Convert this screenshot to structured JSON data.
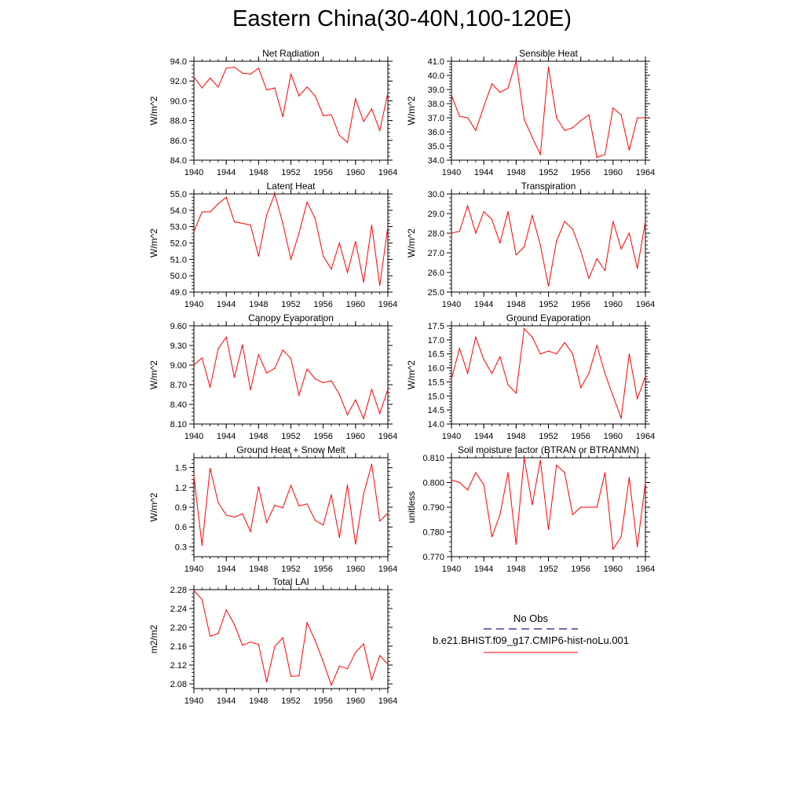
{
  "figure": {
    "title": "Eastern China(30-40N,100-120E)"
  },
  "legend": {
    "obs_label": "No Obs",
    "obs_color": "#1a1a80",
    "model_label": "b.e21.BHIST.f09_g17.CMIP6-hist-noLu.001",
    "model_color": "#ff0000"
  },
  "chart_data": [
    {
      "type": "line",
      "title": "Net Radiation",
      "xlabel": "",
      "ylabel": "W/m^2",
      "xlim": [
        1940,
        1964
      ],
      "ylim": [
        84,
        94
      ],
      "xticks": [
        1940,
        1944,
        1948,
        1952,
        1956,
        1960,
        1964
      ],
      "yticks": [
        "84.0",
        "86.0",
        "88.0",
        "90.0",
        "92.0",
        "94.0"
      ],
      "x": [
        1940,
        1941,
        1942,
        1943,
        1944,
        1945,
        1946,
        1947,
        1948,
        1949,
        1950,
        1951,
        1952,
        1953,
        1954,
        1955,
        1956,
        1957,
        1958,
        1959,
        1960,
        1961,
        1962,
        1963,
        1964
      ],
      "series": [
        {
          "color": "#ff0000",
          "values": [
            92.4,
            91.3,
            92.3,
            91.4,
            93.3,
            93.4,
            92.8,
            92.7,
            93.3,
            91.1,
            91.3,
            88.4,
            92.7,
            90.5,
            91.4,
            90.5,
            88.5,
            88.6,
            86.5,
            85.8,
            90.2,
            87.9,
            89.2,
            87.0,
            90.8
          ]
        }
      ]
    },
    {
      "type": "line",
      "title": "Sensible Heat",
      "xlabel": "",
      "ylabel": "W/m^2",
      "xlim": [
        1940,
        1964
      ],
      "ylim": [
        34,
        41
      ],
      "xticks": [
        1940,
        1944,
        1948,
        1952,
        1956,
        1960,
        1964
      ],
      "yticks": [
        "34.0",
        "35.0",
        "36.0",
        "37.0",
        "38.0",
        "39.0",
        "40.0",
        "41.0"
      ],
      "x": [
        1940,
        1941,
        1942,
        1943,
        1944,
        1945,
        1946,
        1947,
        1948,
        1949,
        1950,
        1951,
        1952,
        1953,
        1954,
        1955,
        1956,
        1957,
        1958,
        1959,
        1960,
        1961,
        1962,
        1963,
        1964
      ],
      "series": [
        {
          "color": "#ff0000",
          "values": [
            38.6,
            37.1,
            37.0,
            36.1,
            37.8,
            39.4,
            38.8,
            39.1,
            41.0,
            36.9,
            35.6,
            34.4,
            40.6,
            37.0,
            36.1,
            36.3,
            36.8,
            37.2,
            34.2,
            34.4,
            37.7,
            37.2,
            34.7,
            37.0,
            37.0
          ]
        }
      ]
    },
    {
      "type": "line",
      "title": "Latent Heat",
      "xlabel": "",
      "ylabel": "W/m^2",
      "xlim": [
        1940,
        1964
      ],
      "ylim": [
        49,
        55
      ],
      "xticks": [
        1940,
        1944,
        1948,
        1952,
        1956,
        1960,
        1964
      ],
      "yticks": [
        "49.0",
        "50.0",
        "51.0",
        "52.0",
        "53.0",
        "54.0",
        "55.0"
      ],
      "x": [
        1940,
        1941,
        1942,
        1943,
        1944,
        1945,
        1946,
        1947,
        1948,
        1949,
        1950,
        1951,
        1952,
        1953,
        1954,
        1955,
        1956,
        1957,
        1958,
        1959,
        1960,
        1961,
        1962,
        1963,
        1964
      ],
      "series": [
        {
          "color": "#ff0000",
          "values": [
            52.7,
            53.9,
            53.9,
            54.4,
            54.8,
            53.3,
            53.2,
            53.1,
            51.2,
            53.7,
            55.0,
            53.2,
            51.0,
            52.6,
            54.5,
            53.5,
            51.2,
            50.4,
            52.0,
            50.2,
            52.1,
            49.6,
            53.1,
            49.4,
            53.0
          ]
        }
      ]
    },
    {
      "type": "line",
      "title": "Transpiration",
      "xlabel": "",
      "ylabel": "W/m^2",
      "xlim": [
        1940,
        1964
      ],
      "ylim": [
        25,
        30
      ],
      "xticks": [
        1940,
        1944,
        1948,
        1952,
        1956,
        1960,
        1964
      ],
      "yticks": [
        "25.0",
        "26.0",
        "27.0",
        "28.0",
        "29.0",
        "30.0"
      ],
      "x": [
        1940,
        1941,
        1942,
        1943,
        1944,
        1945,
        1946,
        1947,
        1948,
        1949,
        1950,
        1951,
        1952,
        1953,
        1954,
        1955,
        1956,
        1957,
        1958,
        1959,
        1960,
        1961,
        1962,
        1963,
        1964
      ],
      "series": [
        {
          "color": "#ff0000",
          "values": [
            28.0,
            28.1,
            29.4,
            28.0,
            29.1,
            28.7,
            27.5,
            29.1,
            26.9,
            27.3,
            28.9,
            27.4,
            25.3,
            27.6,
            28.6,
            28.2,
            27.1,
            25.7,
            26.7,
            26.1,
            28.6,
            27.2,
            28.0,
            26.2,
            28.6
          ]
        }
      ]
    },
    {
      "type": "line",
      "title": "Canopy Evaporation",
      "xlabel": "",
      "ylabel": "W/m^2",
      "xlim": [
        1940,
        1964
      ],
      "ylim": [
        8.1,
        9.6
      ],
      "xticks": [
        1940,
        1944,
        1948,
        1952,
        1956,
        1960,
        1964
      ],
      "yticks": [
        "8.10",
        "8.40",
        "8.70",
        "9.00",
        "9.30",
        "9.60"
      ],
      "x": [
        1940,
        1941,
        1942,
        1943,
        1944,
        1945,
        1946,
        1947,
        1948,
        1949,
        1950,
        1951,
        1952,
        1953,
        1954,
        1955,
        1956,
        1957,
        1958,
        1959,
        1960,
        1961,
        1962,
        1963,
        1964
      ],
      "series": [
        {
          "color": "#ff0000",
          "values": [
            9.0,
            9.11,
            8.66,
            9.25,
            9.43,
            8.81,
            9.31,
            8.62,
            9.16,
            8.88,
            8.95,
            9.23,
            9.1,
            8.54,
            8.94,
            8.79,
            8.73,
            8.76,
            8.55,
            8.24,
            8.47,
            8.18,
            8.63,
            8.26,
            8.63
          ]
        }
      ]
    },
    {
      "type": "line",
      "title": "Ground Evaporation",
      "xlabel": "",
      "ylabel": "W/m^2",
      "xlim": [
        1940,
        1964
      ],
      "ylim": [
        14,
        17.5
      ],
      "xticks": [
        1940,
        1944,
        1948,
        1952,
        1956,
        1960,
        1964
      ],
      "yticks": [
        "14.0",
        "14.5",
        "15.0",
        "15.5",
        "16.0",
        "16.5",
        "17.0",
        "17.5"
      ],
      "x": [
        1940,
        1941,
        1942,
        1943,
        1944,
        1945,
        1946,
        1947,
        1948,
        1949,
        1950,
        1951,
        1952,
        1953,
        1954,
        1955,
        1956,
        1957,
        1958,
        1959,
        1960,
        1961,
        1962,
        1963,
        1964
      ],
      "series": [
        {
          "color": "#ff0000",
          "values": [
            15.6,
            16.7,
            15.8,
            17.1,
            16.3,
            15.8,
            16.4,
            15.4,
            15.1,
            17.4,
            17.1,
            16.5,
            16.6,
            16.5,
            16.9,
            16.5,
            15.3,
            15.8,
            16.8,
            15.8,
            15.0,
            14.2,
            16.5,
            14.9,
            15.7
          ]
        }
      ]
    },
    {
      "type": "line",
      "title": "Ground Heat + Snow Melt",
      "xlabel": "",
      "ylabel": "W/m^2",
      "xlim": [
        1940,
        1964
      ],
      "ylim": [
        0.15,
        1.65
      ],
      "xticks": [
        1940,
        1944,
        1948,
        1952,
        1956,
        1960,
        1964
      ],
      "yticks": [
        "0.3",
        "0.6",
        "0.9",
        "1.2",
        "1.5"
      ],
      "x": [
        1940,
        1941,
        1942,
        1943,
        1944,
        1945,
        1946,
        1947,
        1948,
        1949,
        1950,
        1951,
        1952,
        1953,
        1954,
        1955,
        1956,
        1957,
        1958,
        1959,
        1960,
        1961,
        1962,
        1963,
        1964
      ],
      "series": [
        {
          "color": "#ff0000",
          "values": [
            1.37,
            0.32,
            1.49,
            0.97,
            0.78,
            0.75,
            0.8,
            0.53,
            1.21,
            0.67,
            0.93,
            0.89,
            1.23,
            0.92,
            0.95,
            0.7,
            0.63,
            1.09,
            0.44,
            1.24,
            0.34,
            1.1,
            1.55,
            0.69,
            0.81
          ]
        }
      ]
    },
    {
      "type": "line",
      "title": "Soil moisture factor (BTRAN or BTRANMN)",
      "xlabel": "",
      "ylabel": "unitless",
      "xlim": [
        1940,
        1964
      ],
      "ylim": [
        0.77,
        0.81
      ],
      "xticks": [
        1940,
        1944,
        1948,
        1952,
        1956,
        1960,
        1964
      ],
      "yticks": [
        "0.770",
        "0.780",
        "0.790",
        "0.800",
        "0.810"
      ],
      "x": [
        1940,
        1941,
        1942,
        1943,
        1944,
        1945,
        1946,
        1947,
        1948,
        1949,
        1950,
        1951,
        1952,
        1953,
        1954,
        1955,
        1956,
        1957,
        1958,
        1959,
        1960,
        1961,
        1962,
        1963,
        1964
      ],
      "series": [
        {
          "color": "#ff0000",
          "values": [
            0.801,
            0.8,
            0.797,
            0.804,
            0.799,
            0.778,
            0.787,
            0.804,
            0.775,
            0.81,
            0.791,
            0.809,
            0.781,
            0.807,
            0.804,
            0.787,
            0.79,
            0.79,
            0.79,
            0.804,
            0.773,
            0.778,
            0.802,
            0.774,
            0.8
          ]
        }
      ]
    },
    {
      "type": "line",
      "title": "Total LAI",
      "xlabel": "",
      "ylabel": "m2/m2",
      "xlim": [
        1940,
        1964
      ],
      "ylim": [
        2.07,
        2.28
      ],
      "xticks": [
        1940,
        1944,
        1948,
        1952,
        1956,
        1960,
        1964
      ],
      "yticks": [
        "2.08",
        "2.12",
        "2.16",
        "2.20",
        "2.24",
        "2.28"
      ],
      "x": [
        1940,
        1941,
        1942,
        1943,
        1944,
        1945,
        1946,
        1947,
        1948,
        1949,
        1950,
        1951,
        1952,
        1953,
        1954,
        1955,
        1956,
        1957,
        1958,
        1959,
        1960,
        1961,
        1962,
        1963,
        1964
      ],
      "series": [
        {
          "color": "#ff0000",
          "values": [
            2.278,
            2.259,
            2.181,
            2.187,
            2.237,
            2.206,
            2.162,
            2.169,
            2.164,
            2.084,
            2.159,
            2.178,
            2.096,
            2.097,
            2.21,
            2.172,
            2.127,
            2.077,
            2.118,
            2.112,
            2.147,
            2.165,
            2.089,
            2.14,
            2.122
          ]
        }
      ]
    }
  ]
}
